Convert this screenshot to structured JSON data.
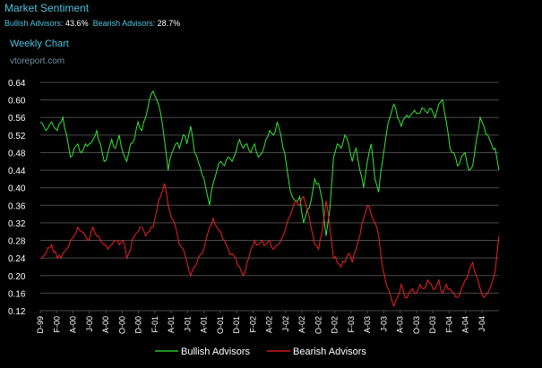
{
  "header": {
    "title": "Market Sentiment",
    "bullish_label": "Bullish Advisors:",
    "bullish_value": "43.6%",
    "bearish_label": "Bearish Advisors:",
    "bearish_value": "28.7%",
    "chart_name": "Weekly Chart",
    "site": "vtoreport.com"
  },
  "colors": {
    "background": "#000000",
    "grid": "#4a4a4a",
    "bullish": "#33e833",
    "bearish": "#f02020",
    "title": "#4cc3e0",
    "axis_text": "#ffffff"
  },
  "chart_data": {
    "type": "line",
    "title": "Weekly Chart",
    "xlabel": "",
    "ylabel": "",
    "ylim": [
      0.12,
      0.64
    ],
    "yticks": [
      "0.12",
      "0.16",
      "0.20",
      "0.24",
      "0.28",
      "0.32",
      "0.36",
      "0.40",
      "0.44",
      "0.48",
      "0.52",
      "0.56",
      "0.60",
      "0.64"
    ],
    "grid": true,
    "legend_position": "bottom-center",
    "xticks": [
      "D-99",
      "F-00",
      "A-00",
      "J-00",
      "A-00",
      "O-00",
      "D-00",
      "F-01",
      "A-01",
      "J-01",
      "A-01",
      "O-01",
      "D-01",
      "F-02",
      "A-02",
      "J-02",
      "A-02",
      "O-02",
      "D-02",
      "F-03",
      "A-03",
      "J-03",
      "A-03",
      "O-03",
      "D-03",
      "F-04",
      "A-04",
      "J-04"
    ],
    "xtick_positions": [
      0,
      8.7,
      17.4,
      26.1,
      34.8,
      43.5,
      52.2,
      60.9,
      69.6,
      78.3,
      87,
      95.7,
      104.4,
      113.1,
      121.8,
      130.5,
      139.2,
      147.9,
      156.6,
      165.3,
      174,
      182.7,
      191.4,
      200.1,
      208.8,
      217.5,
      226.2,
      234.9
    ],
    "x_count": 245,
    "series": [
      {
        "name": "Bullish Advisors",
        "color": "#33e833",
        "points": [
          [
            0,
            0.55
          ],
          [
            3,
            0.53
          ],
          [
            6,
            0.55
          ],
          [
            9,
            0.53
          ],
          [
            12,
            0.56
          ],
          [
            14,
            0.52
          ],
          [
            16,
            0.47
          ],
          [
            18,
            0.49
          ],
          [
            20,
            0.5
          ],
          [
            22,
            0.48
          ],
          [
            24,
            0.5
          ],
          [
            26,
            0.5
          ],
          [
            28,
            0.51
          ],
          [
            30,
            0.53
          ],
          [
            32,
            0.5
          ],
          [
            34,
            0.46
          ],
          [
            36,
            0.48
          ],
          [
            38,
            0.51
          ],
          [
            40,
            0.49
          ],
          [
            42,
            0.52
          ],
          [
            44,
            0.48
          ],
          [
            46,
            0.46
          ],
          [
            48,
            0.5
          ],
          [
            50,
            0.51
          ],
          [
            52,
            0.55
          ],
          [
            54,
            0.53
          ],
          [
            56,
            0.56
          ],
          [
            58,
            0.6
          ],
          [
            60,
            0.62
          ],
          [
            62,
            0.6
          ],
          [
            64,
            0.57
          ],
          [
            66,
            0.51
          ],
          [
            68,
            0.44
          ],
          [
            70,
            0.48
          ],
          [
            72,
            0.5
          ],
          [
            74,
            0.49
          ],
          [
            76,
            0.52
          ],
          [
            78,
            0.5
          ],
          [
            80,
            0.54
          ],
          [
            82,
            0.48
          ],
          [
            84,
            0.46
          ],
          [
            86,
            0.43
          ],
          [
            88,
            0.4
          ],
          [
            90,
            0.36
          ],
          [
            92,
            0.41
          ],
          [
            94,
            0.44
          ],
          [
            96,
            0.46
          ],
          [
            98,
            0.45
          ],
          [
            100,
            0.47
          ],
          [
            102,
            0.46
          ],
          [
            104,
            0.48
          ],
          [
            106,
            0.51
          ],
          [
            108,
            0.49
          ],
          [
            110,
            0.5
          ],
          [
            112,
            0.48
          ],
          [
            114,
            0.5
          ],
          [
            116,
            0.47
          ],
          [
            118,
            0.48
          ],
          [
            120,
            0.51
          ],
          [
            122,
            0.53
          ],
          [
            124,
            0.52
          ],
          [
            126,
            0.55
          ],
          [
            128,
            0.52
          ],
          [
            130,
            0.48
          ],
          [
            132,
            0.42
          ],
          [
            134,
            0.38
          ],
          [
            136,
            0.37
          ],
          [
            138,
            0.38
          ],
          [
            140,
            0.32
          ],
          [
            142,
            0.35
          ],
          [
            144,
            0.37
          ],
          [
            146,
            0.42
          ],
          [
            148,
            0.41
          ],
          [
            150,
            0.37
          ],
          [
            152,
            0.29
          ],
          [
            154,
            0.35
          ],
          [
            156,
            0.47
          ],
          [
            158,
            0.5
          ],
          [
            160,
            0.49
          ],
          [
            162,
            0.52
          ],
          [
            164,
            0.5
          ],
          [
            166,
            0.46
          ],
          [
            168,
            0.49
          ],
          [
            170,
            0.44
          ],
          [
            172,
            0.4
          ],
          [
            174,
            0.46
          ],
          [
            176,
            0.5
          ],
          [
            178,
            0.42
          ],
          [
            180,
            0.39
          ],
          [
            182,
            0.46
          ],
          [
            184,
            0.52
          ],
          [
            186,
            0.56
          ],
          [
            188,
            0.59
          ],
          [
            190,
            0.56
          ],
          [
            192,
            0.54
          ],
          [
            194,
            0.56
          ],
          [
            196,
            0.56
          ],
          [
            198,
            0.57
          ],
          [
            200,
            0.57
          ],
          [
            202,
            0.57
          ],
          [
            204,
            0.58
          ],
          [
            206,
            0.57
          ],
          [
            208,
            0.58
          ],
          [
            210,
            0.56
          ],
          [
            212,
            0.59
          ],
          [
            214,
            0.6
          ],
          [
            216,
            0.55
          ],
          [
            218,
            0.49
          ],
          [
            220,
            0.48
          ],
          [
            222,
            0.45
          ],
          [
            224,
            0.47
          ],
          [
            226,
            0.48
          ],
          [
            228,
            0.44
          ],
          [
            230,
            0.45
          ],
          [
            232,
            0.51
          ],
          [
            234,
            0.56
          ],
          [
            236,
            0.54
          ],
          [
            238,
            0.52
          ],
          [
            240,
            0.5
          ],
          [
            242,
            0.49
          ],
          [
            244,
            0.44
          ]
        ]
      },
      {
        "name": "Bearish Advisors",
        "color": "#f02020",
        "points": [
          [
            0,
            0.24
          ],
          [
            3,
            0.25
          ],
          [
            6,
            0.27
          ],
          [
            9,
            0.24
          ],
          [
            12,
            0.25
          ],
          [
            14,
            0.26
          ],
          [
            16,
            0.28
          ],
          [
            18,
            0.29
          ],
          [
            20,
            0.31
          ],
          [
            22,
            0.3
          ],
          [
            24,
            0.29
          ],
          [
            26,
            0.28
          ],
          [
            28,
            0.31
          ],
          [
            30,
            0.29
          ],
          [
            32,
            0.28
          ],
          [
            34,
            0.27
          ],
          [
            36,
            0.26
          ],
          [
            38,
            0.27
          ],
          [
            40,
            0.28
          ],
          [
            42,
            0.27
          ],
          [
            44,
            0.28
          ],
          [
            46,
            0.24
          ],
          [
            48,
            0.26
          ],
          [
            50,
            0.29
          ],
          [
            52,
            0.3
          ],
          [
            54,
            0.31
          ],
          [
            56,
            0.29
          ],
          [
            58,
            0.3
          ],
          [
            60,
            0.31
          ],
          [
            62,
            0.35
          ],
          [
            64,
            0.38
          ],
          [
            66,
            0.41
          ],
          [
            68,
            0.36
          ],
          [
            70,
            0.33
          ],
          [
            72,
            0.31
          ],
          [
            74,
            0.27
          ],
          [
            76,
            0.26
          ],
          [
            78,
            0.23
          ],
          [
            80,
            0.2
          ],
          [
            82,
            0.22
          ],
          [
            84,
            0.24
          ],
          [
            86,
            0.25
          ],
          [
            88,
            0.28
          ],
          [
            90,
            0.31
          ],
          [
            92,
            0.33
          ],
          [
            94,
            0.31
          ],
          [
            96,
            0.3
          ],
          [
            98,
            0.28
          ],
          [
            100,
            0.26
          ],
          [
            102,
            0.25
          ],
          [
            104,
            0.24
          ],
          [
            106,
            0.22
          ],
          [
            108,
            0.2
          ],
          [
            110,
            0.23
          ],
          [
            112,
            0.26
          ],
          [
            114,
            0.28
          ],
          [
            116,
            0.27
          ],
          [
            118,
            0.28
          ],
          [
            120,
            0.27
          ],
          [
            122,
            0.28
          ],
          [
            124,
            0.26
          ],
          [
            126,
            0.27
          ],
          [
            128,
            0.28
          ],
          [
            130,
            0.3
          ],
          [
            132,
            0.33
          ],
          [
            134,
            0.35
          ],
          [
            136,
            0.37
          ],
          [
            138,
            0.36
          ],
          [
            140,
            0.38
          ],
          [
            142,
            0.35
          ],
          [
            144,
            0.31
          ],
          [
            146,
            0.27
          ],
          [
            148,
            0.26
          ],
          [
            150,
            0.3
          ],
          [
            152,
            0.37
          ],
          [
            154,
            0.31
          ],
          [
            156,
            0.24
          ],
          [
            158,
            0.23
          ],
          [
            160,
            0.22
          ],
          [
            162,
            0.23
          ],
          [
            164,
            0.25
          ],
          [
            166,
            0.23
          ],
          [
            168,
            0.26
          ],
          [
            170,
            0.29
          ],
          [
            172,
            0.33
          ],
          [
            174,
            0.36
          ],
          [
            176,
            0.34
          ],
          [
            178,
            0.32
          ],
          [
            180,
            0.29
          ],
          [
            182,
            0.22
          ],
          [
            184,
            0.18
          ],
          [
            186,
            0.16
          ],
          [
            188,
            0.13
          ],
          [
            190,
            0.15
          ],
          [
            192,
            0.18
          ],
          [
            194,
            0.15
          ],
          [
            196,
            0.16
          ],
          [
            198,
            0.17
          ],
          [
            200,
            0.16
          ],
          [
            202,
            0.18
          ],
          [
            204,
            0.17
          ],
          [
            206,
            0.19
          ],
          [
            208,
            0.18
          ],
          [
            210,
            0.17
          ],
          [
            212,
            0.19
          ],
          [
            214,
            0.16
          ],
          [
            216,
            0.18
          ],
          [
            218,
            0.17
          ],
          [
            220,
            0.16
          ],
          [
            222,
            0.15
          ],
          [
            224,
            0.17
          ],
          [
            226,
            0.19
          ],
          [
            228,
            0.21
          ],
          [
            230,
            0.23
          ],
          [
            232,
            0.2
          ],
          [
            234,
            0.17
          ],
          [
            236,
            0.15
          ],
          [
            238,
            0.16
          ],
          [
            240,
            0.18
          ],
          [
            242,
            0.21
          ],
          [
            244,
            0.29
          ]
        ]
      }
    ]
  }
}
